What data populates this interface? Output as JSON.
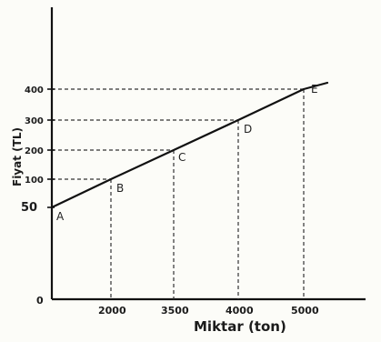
{
  "chart_data": {
    "type": "line",
    "title": "",
    "xlabel": "Miktar (ton)",
    "ylabel": "Fiyat (TL)",
    "x_ticks": [
      "2000",
      "3500",
      "4000",
      "5000"
    ],
    "y_ticks": [
      "400",
      "300",
      "200",
      "100",
      "50"
    ],
    "origin_label": "0",
    "xlim": [
      0,
      5500
    ],
    "ylim": [
      0,
      450
    ],
    "grid": false,
    "series": [
      {
        "points": [
          {
            "label": "A",
            "x": 0,
            "y": 50
          },
          {
            "label": "B",
            "x": 2000,
            "y": 100
          },
          {
            "label": "C",
            "x": 3500,
            "y": 200
          },
          {
            "label": "D",
            "x": 4000,
            "y": 300
          },
          {
            "label": "E",
            "x": 5000,
            "y": 400
          }
        ]
      }
    ]
  }
}
